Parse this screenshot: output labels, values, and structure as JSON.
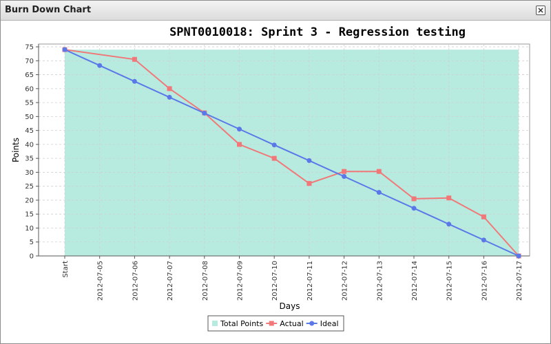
{
  "window": {
    "title": "Burn Down Chart",
    "close_icon": "close-icon"
  },
  "chart_data": {
    "type": "line",
    "title": "SPNT0010018: Sprint 3 - Regression testing",
    "xlabel": "Days",
    "ylabel": "Points",
    "ylim": [
      0,
      76
    ],
    "yticks": [
      0,
      5,
      10,
      15,
      20,
      25,
      30,
      35,
      40,
      45,
      50,
      55,
      60,
      65,
      70,
      75
    ],
    "categories": [
      "Start",
      "2012-07-05",
      "2012-07-06",
      "2012-07-07",
      "2012-07-08",
      "2012-07-09",
      "2012-07-10",
      "2012-07-11",
      "2012-07-12",
      "2012-07-13",
      "2012-07-14",
      "2012-07-15",
      "2012-07-16",
      "2012-07-17"
    ],
    "grid": true,
    "legend_position": "bottom",
    "series": [
      {
        "name": "Total Points",
        "kind": "area",
        "color": "#b8ebe0",
        "values": [
          74,
          74,
          74,
          74,
          74,
          74,
          74,
          74,
          74,
          74,
          74,
          74,
          74,
          74
        ]
      },
      {
        "name": "Actual",
        "kind": "line",
        "marker": "square",
        "color": "#f07878",
        "values": [
          74,
          null,
          70.5,
          60,
          51.3,
          40,
          35,
          26,
          30.3,
          30.3,
          20.5,
          20.8,
          14,
          0
        ]
      },
      {
        "name": "Ideal",
        "kind": "line",
        "marker": "circle",
        "color": "#5a78e8",
        "values": [
          74,
          68.3,
          62.6,
          56.9,
          51.2,
          45.5,
          39.8,
          34.2,
          28.5,
          22.8,
          17.1,
          11.4,
          5.7,
          0
        ]
      }
    ]
  }
}
